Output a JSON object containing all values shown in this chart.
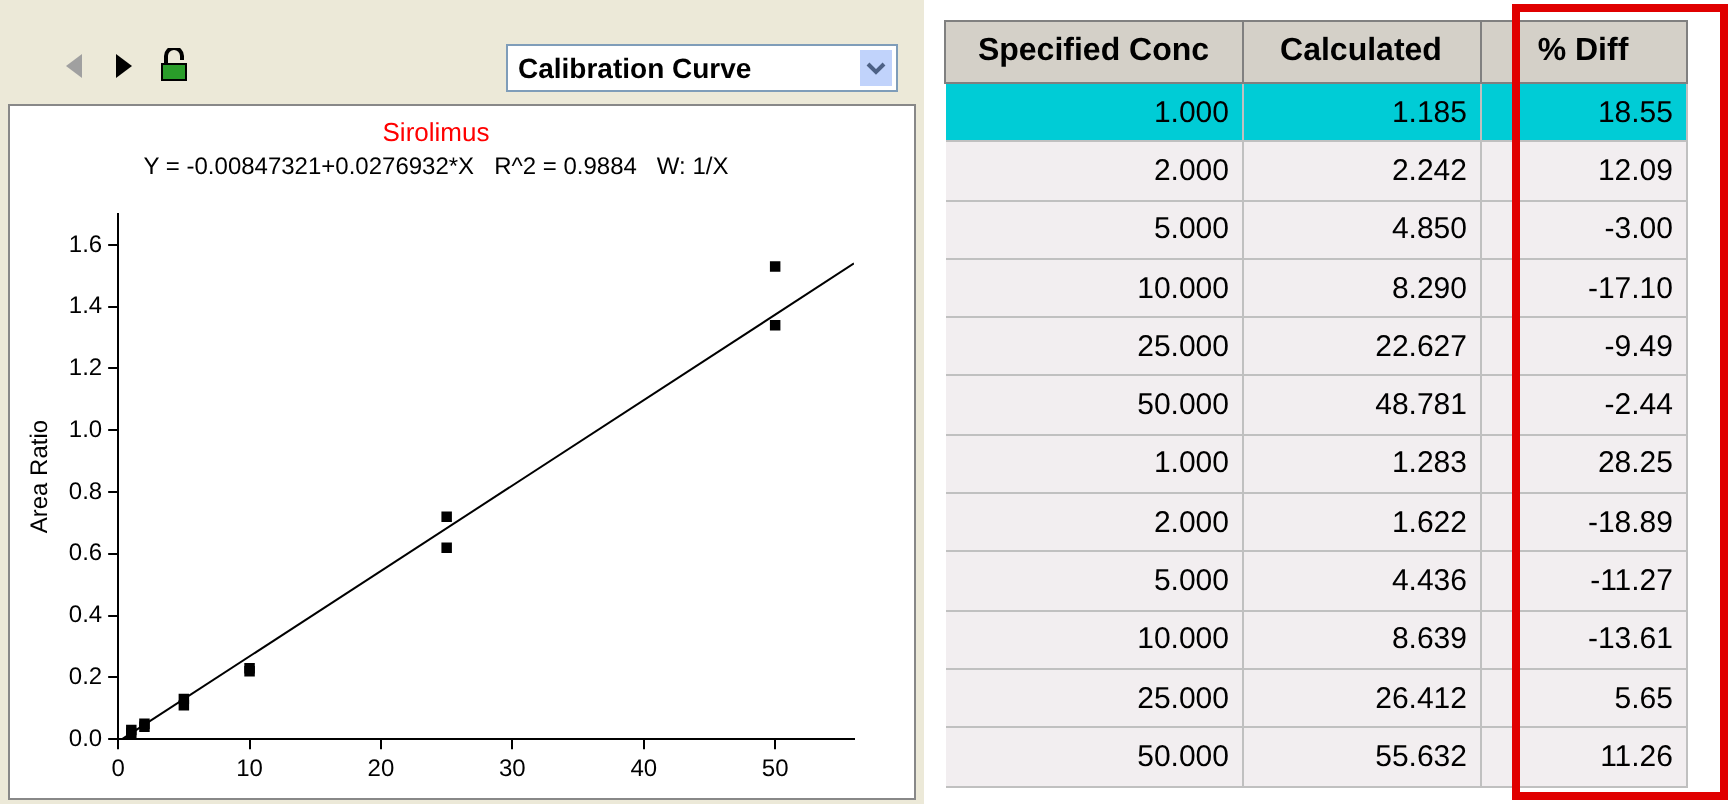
{
  "chart_data": [
    {
      "type": "scatter",
      "title": "Sirolimus",
      "subtitle": "Y = -0.00847321+0.0276932*X   R^2 = 0.9884   W: 1/X",
      "ylabel": "Area Ratio",
      "annotations": [
        "Calibration Curve"
      ],
      "xlim": [
        0,
        56
      ],
      "xticks": [
        0,
        10,
        20,
        30,
        40,
        50
      ],
      "ylim": [
        0,
        1.7
      ],
      "yticks": [
        {
          "value": 0,
          "label": "0.0"
        },
        {
          "value": 0.2,
          "label": "0.2"
        },
        {
          "value": 0.4,
          "label": "0.4"
        },
        {
          "value": 0.6,
          "label": "0.6"
        },
        {
          "value": 0.8,
          "label": "0.8"
        },
        {
          "value": 1,
          "label": "1.0"
        },
        {
          "value": 1.2,
          "label": "1.2"
        },
        {
          "value": 1.4,
          "label": "1.4"
        },
        {
          "value": 1.6,
          "label": "1.6"
        }
      ],
      "grid": false,
      "legend": false,
      "marker": "square",
      "series": [
        {
          "type": "scatter",
          "color": "#000000",
          "x": [
            1,
            2,
            5,
            10,
            25,
            50,
            1,
            2,
            5,
            10,
            25,
            50
          ],
          "values": [
            0.02,
            0.05,
            0.13,
            0.22,
            0.62,
            1.34,
            0.03,
            0.04,
            0.11,
            0.23,
            0.72,
            1.53
          ]
        },
        {
          "type": "line",
          "color": "#000000",
          "marker": "none",
          "x": [
            0.3,
            56
          ],
          "values": [
            0,
            1.54
          ]
        }
      ]
    },
    {
      "type": "other",
      "categories": [
        "Specified Conc",
        "Calculated",
        "% Diff"
      ],
      "cell_labels": [
        [
          "1.000",
          "1.185",
          "18.55"
        ],
        [
          "2.000",
          "2.242",
          "12.09"
        ],
        [
          "5.000",
          "4.850",
          "-3.00"
        ],
        [
          "10.000",
          "8.290",
          "-17.10"
        ],
        [
          "25.000",
          "22.627",
          "-9.49"
        ],
        [
          "50.000",
          "48.781",
          "-2.44"
        ],
        [
          "1.000",
          "1.283",
          "28.25"
        ],
        [
          "2.000",
          "1.622",
          "-18.89"
        ],
        [
          "5.000",
          "4.436",
          "-11.27"
        ],
        [
          "10.000",
          "8.639",
          "-13.61"
        ],
        [
          "25.000",
          "26.412",
          "5.65"
        ],
        [
          "50.000",
          "55.632",
          "11.26"
        ]
      ]
    }
  ]
}
